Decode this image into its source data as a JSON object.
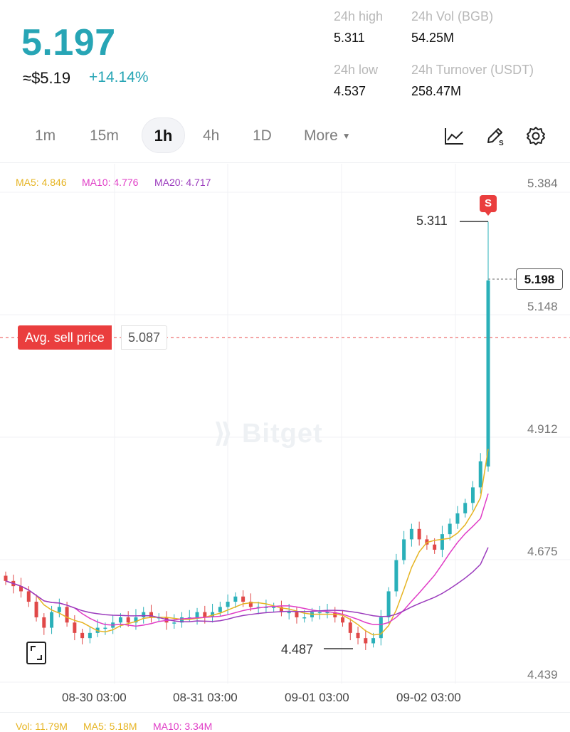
{
  "ticker": {
    "last_price": "5.197",
    "usd_approx": "≈$5.19",
    "change_pct": "+14.14%"
  },
  "stats": {
    "high_label": "24h high",
    "high_value": "5.311",
    "vol_label": "24h Vol (BGB)",
    "vol_value": "54.25M",
    "low_label": "24h low",
    "low_value": "4.537",
    "turnover_label": "24h Turnover (USDT)",
    "turnover_value": "258.47M"
  },
  "timeframes": {
    "tf_1m": "1m",
    "tf_15m": "15m",
    "tf_1h": "1h",
    "tf_4h": "4h",
    "tf_1d": "1D",
    "more": "More",
    "selected": "1h"
  },
  "tools": {
    "indicator_icon": "line-chart-icon",
    "draw_icon": "pen-draw-icon",
    "settings_icon": "gear-icon"
  },
  "indicators": {
    "ma5": "MA5: 4.846",
    "ma10": "MA10: 4.776",
    "ma20": "MA20: 4.717",
    "ma5_color": "#e6b422",
    "ma10_color": "#e03cc6",
    "ma20_color": "#9b3bbd"
  },
  "avg_sell": {
    "label": "Avg. sell price",
    "value": "5.087"
  },
  "high_marker": "5.311",
  "low_marker": "4.487",
  "current_price_tag": "5.198",
  "sell_flag": "S",
  "watermark": "Bitget",
  "volume_bar": {
    "vol": "Vol: 11.79M",
    "ma5": "MA5: 5.18M",
    "ma10": "MA10: 3.34M"
  },
  "colors": {
    "up": "#2ab0b9",
    "down": "#e04848",
    "accent": "#27a5b5"
  },
  "chart_data": {
    "type": "candlestick",
    "interval": "1h",
    "y_ticks": [
      "5.384",
      "5.148",
      "4.912",
      "4.675",
      "4.439"
    ],
    "ylim": [
      4.439,
      5.384
    ],
    "x_ticks": [
      "08-30 03:00",
      "08-31 03:00",
      "09-01 03:00",
      "09-02 03:00"
    ],
    "reference_lines": {
      "avg_sell_price": 5.087,
      "current": 5.198
    },
    "candles_approx_close": [
      4.62,
      4.61,
      4.6,
      4.58,
      4.55,
      4.53,
      4.56,
      4.57,
      4.54,
      4.52,
      4.51,
      4.52,
      4.53,
      4.53,
      4.54,
      4.55,
      4.54,
      4.55,
      4.56,
      4.55,
      4.55,
      4.54,
      4.54,
      4.55,
      4.55,
      4.56,
      4.55,
      4.56,
      4.57,
      4.58,
      4.59,
      4.58,
      4.57,
      4.57,
      4.57,
      4.57,
      4.56,
      4.56,
      4.55,
      4.55,
      4.56,
      4.56,
      4.56,
      4.55,
      4.54,
      4.52,
      4.51,
      4.5,
      4.51,
      4.55,
      4.6,
      4.66,
      4.7,
      4.72,
      4.7,
      4.69,
      4.68,
      4.71,
      4.73,
      4.75,
      4.77,
      4.8,
      4.85,
      5.198
    ],
    "ma_lines": [
      "MA5",
      "MA10",
      "MA20"
    ]
  }
}
